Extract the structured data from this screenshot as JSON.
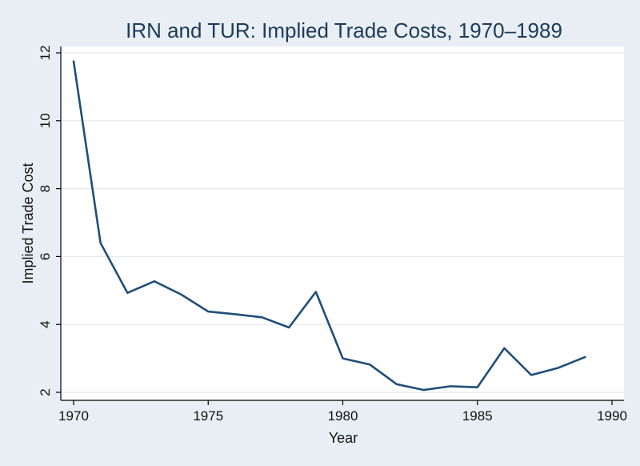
{
  "chart_data": {
    "type": "line",
    "title": "IRN and TUR: Implied Trade Costs, 1970–1989",
    "xlabel": "Year",
    "ylabel": "Implied Trade Cost",
    "xlim": [
      1970,
      1990
    ],
    "ylim": [
      2,
      12
    ],
    "xticks": [
      1970,
      1975,
      1980,
      1985,
      1990
    ],
    "yticks": [
      2,
      4,
      6,
      8,
      10,
      12
    ],
    "grid": true,
    "legend": "none",
    "colors": {
      "line": "#1f4e79",
      "plot_bg": "#ffffff",
      "page_bg": "#e8eef3",
      "title": "#1c3a59"
    },
    "x": [
      1970,
      1971,
      1972,
      1973,
      1974,
      1975,
      1976,
      1977,
      1978,
      1979,
      1980,
      1981,
      1982,
      1983,
      1984,
      1985,
      1986,
      1987,
      1988,
      1989
    ],
    "series": [
      {
        "values": [
          11.75,
          6.4,
          4.93,
          5.27,
          4.88,
          4.38,
          4.3,
          4.21,
          3.91,
          4.96,
          3.0,
          2.82,
          2.24,
          2.07,
          2.18,
          2.15,
          3.3,
          2.51,
          2.72,
          3.04
        ]
      }
    ]
  }
}
